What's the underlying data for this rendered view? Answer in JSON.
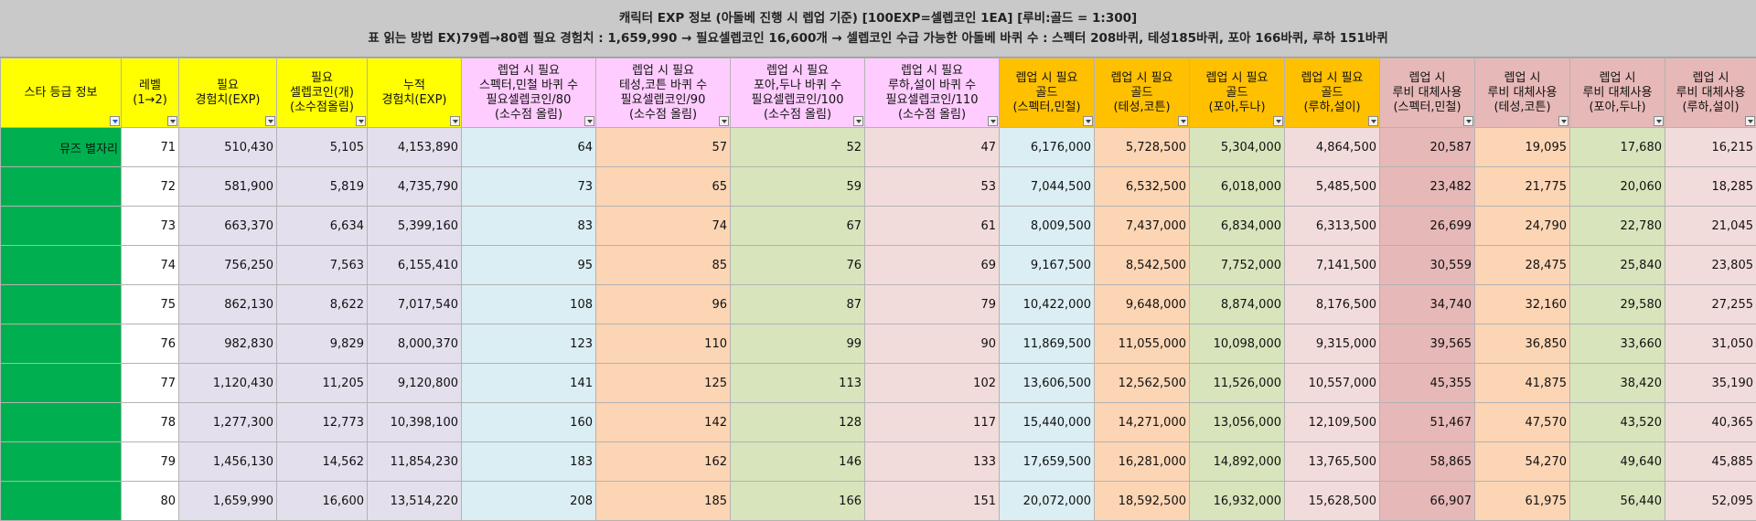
{
  "title": {
    "line1": "캐릭터 EXP 정보 (아돌베 진행 시 렙업 기준) [100EXP=셀렙코인 1EA] [루비:골드 = 1:300]",
    "line2": "표 읽는 방법 EX)79렙→80렙 필요 경험치 : 1,659,990 → 필요셀렙코인 16,600개 → 셀렙코인 수급 가능한 아돌베 바퀴 수 : 스펙터 208바퀴, 테성185바퀴, 포아 166바퀴, 루하 151바퀴"
  },
  "headers": [
    [
      "스타 등급 정보"
    ],
    [
      "레벨",
      "(1→2)"
    ],
    [
      "필요",
      "경험치(EXP)"
    ],
    [
      "필요",
      "셀렙코인(개)",
      "(소수점올림)"
    ],
    [
      "누적",
      "경험치(EXP)"
    ],
    [
      "렙업 시 필요",
      "스펙터,민철 바퀴 수",
      "필요셀렙코인/80",
      "(소수점 올림)"
    ],
    [
      "렙업 시 필요",
      "테성,코튼 바퀴 수",
      "필요셀렙코인/90",
      "(소수점 올림)"
    ],
    [
      "렙업 시 필요",
      "포아,두나 바퀴 수",
      "필요셀렙코인/100",
      "(소수점 올림)"
    ],
    [
      "렙업 시 필요",
      "루하,설이 바퀴 수",
      "필요셀렙코인/110",
      "(소수점 올림)"
    ],
    [
      "렙업 시 필요",
      "골드",
      "(스펙터,민철)"
    ],
    [
      "렙업 시 필요",
      "골드",
      "(테성,코튼)"
    ],
    [
      "렙업 시 필요",
      "골드",
      "(포아,두나)"
    ],
    [
      "렙업 시 필요",
      "골드",
      "(루하,설이)"
    ],
    [
      "렙업 시",
      "루비 대체사용",
      "(스펙터,민철)"
    ],
    [
      "렙업 시",
      "루비 대체사용",
      "(테성,코튼)"
    ],
    [
      "렙업 시",
      "루비 대체사용",
      "(포아,두나)"
    ],
    [
      "렙업 시",
      "루비 대체사용",
      "(루하,설이)"
    ]
  ],
  "rows": [
    [
      "뮤즈 별자리",
      "71",
      "510,430",
      "5,105",
      "4,153,890",
      "64",
      "57",
      "52",
      "47",
      "6,176,000",
      "5,728,500",
      "5,304,000",
      "4,864,500",
      "20,587",
      "19,095",
      "17,680",
      "16,215"
    ],
    [
      "",
      "72",
      "581,900",
      "5,819",
      "4,735,790",
      "73",
      "65",
      "59",
      "53",
      "7,044,500",
      "6,532,500",
      "6,018,000",
      "5,485,500",
      "23,482",
      "21,775",
      "20,060",
      "18,285"
    ],
    [
      "",
      "73",
      "663,370",
      "6,634",
      "5,399,160",
      "83",
      "74",
      "67",
      "61",
      "8,009,500",
      "7,437,000",
      "6,834,000",
      "6,313,500",
      "26,699",
      "24,790",
      "22,780",
      "21,045"
    ],
    [
      "",
      "74",
      "756,250",
      "7,563",
      "6,155,410",
      "95",
      "85",
      "76",
      "69",
      "9,167,500",
      "8,542,500",
      "7,752,000",
      "7,141,500",
      "30,559",
      "28,475",
      "25,840",
      "23,805"
    ],
    [
      "",
      "75",
      "862,130",
      "8,622",
      "7,017,540",
      "108",
      "96",
      "87",
      "79",
      "10,422,000",
      "9,648,000",
      "8,874,000",
      "8,176,500",
      "34,740",
      "32,160",
      "29,580",
      "27,255"
    ],
    [
      "",
      "76",
      "982,830",
      "9,829",
      "8,000,370",
      "123",
      "110",
      "99",
      "90",
      "11,869,500",
      "11,055,000",
      "10,098,000",
      "9,315,000",
      "39,565",
      "36,850",
      "33,660",
      "31,050"
    ],
    [
      "",
      "77",
      "1,120,430",
      "11,205",
      "9,120,800",
      "141",
      "125",
      "113",
      "102",
      "13,606,500",
      "12,562,500",
      "11,526,000",
      "10,557,000",
      "45,355",
      "41,875",
      "38,420",
      "35,190"
    ],
    [
      "",
      "78",
      "1,277,300",
      "12,773",
      "10,398,100",
      "160",
      "142",
      "128",
      "117",
      "15,440,000",
      "14,271,000",
      "13,056,000",
      "12,109,500",
      "51,467",
      "47,570",
      "43,520",
      "40,365"
    ],
    [
      "",
      "79",
      "1,456,130",
      "14,562",
      "11,854,230",
      "183",
      "162",
      "146",
      "133",
      "17,659,500",
      "16,281,000",
      "14,892,000",
      "13,765,500",
      "58,865",
      "54,270",
      "49,640",
      "45,885"
    ],
    [
      "",
      "80",
      "1,659,990",
      "16,600",
      "13,514,220",
      "208",
      "185",
      "166",
      "151",
      "20,072,000",
      "18,592,500",
      "16,932,000",
      "15,628,500",
      "66,907",
      "61,975",
      "56,440",
      "52,095"
    ]
  ],
  "colors": {
    "title_bg": "#c9c9c9",
    "header_yellow": "#ffff00",
    "header_pink": "#ffccff",
    "header_orange": "#ffc000",
    "header_rose": "#e6b8b7",
    "star_cell": "#00b050",
    "exp_cells": "#e4dfec",
    "blue_cells": "#daeef3",
    "peach_cells": "#fcd5b4",
    "green_cells": "#d8e4bc",
    "pink_cells": "#f2dcdb",
    "rose_cells": "#e6b8b7"
  }
}
